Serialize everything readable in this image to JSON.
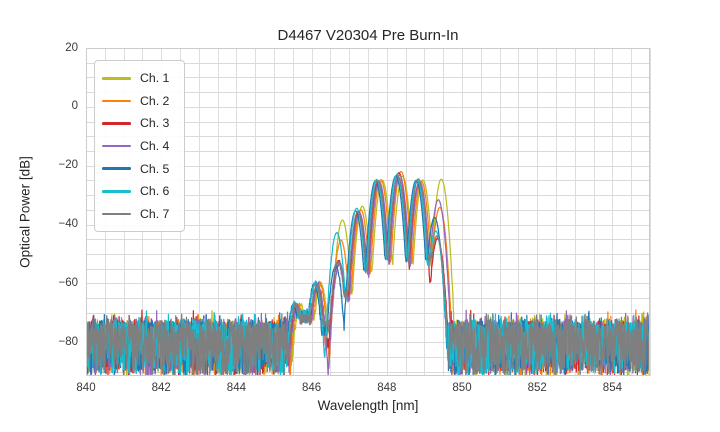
{
  "chart_data": {
    "type": "line",
    "title": "D4467 V20304 Pre Burn-In",
    "xlabel": "Wavelength [nm]",
    "ylabel": "Optical Power [dB]",
    "xlim": [
      840,
      855
    ],
    "ylim": [
      -91.5,
      20
    ],
    "x_tick_values": [
      840,
      842,
      844,
      846,
      848,
      850,
      852,
      854
    ],
    "x_tick_labels": [
      "840",
      "842",
      "844",
      "846",
      "848",
      "850",
      "852",
      "854"
    ],
    "y_tick_values": [
      20,
      0,
      -20,
      -40,
      -60,
      -80
    ],
    "y_tick_labels": [
      "20",
      "0",
      "−20",
      "−40",
      "−60",
      "−80"
    ],
    "grid": {
      "show": true,
      "x_step_nm": 0.5,
      "y_step_db": 5,
      "color": "#dadada",
      "border_color": "#cccccc"
    },
    "legend": {
      "position": "upper-left"
    },
    "noise_floor": {
      "top_db": -73.6,
      "typical_depth_db": 17.5,
      "spike_rate": 0.025,
      "regions_nm": [
        [
          840,
          845.4
        ],
        [
          849.7,
          855
        ]
      ]
    },
    "signal_band_nm": [
      845.4,
      849.7
    ],
    "mode_centers_nm": [
      845.6,
      846.15,
      846.72,
      847.25,
      847.78,
      848.32,
      848.86,
      849.35
    ],
    "lobe_width_coeff_db_per_nm2": 424,
    "series": [
      {
        "name": "Ch. 1",
        "color": "#bcbd22",
        "wavelength_offset_nm": 0.1,
        "mode_peaks_db": [
          -67.0,
          -60.2,
          -38.5,
          -33.8,
          -25.0,
          -23.6,
          -24.9,
          -24.6
        ],
        "valley_floors_db": [
          -71.0,
          -78,
          -63.0,
          -56.0,
          -52.0,
          -52.0,
          -50.0
        ]
      },
      {
        "name": "Ch. 2",
        "color": "#ff7f0e",
        "wavelength_offset_nm": 0.06,
        "mode_peaks_db": [
          -67.5,
          -60.0,
          -45.5,
          -35.0,
          -24.8,
          -22.0,
          -25.3,
          -34.2
        ],
        "valley_floors_db": [
          -71.5,
          -92,
          -64.0,
          -56.0,
          -51.5,
          -53.0,
          -57.0
        ]
      },
      {
        "name": "Ch. 3",
        "color": "#d62728",
        "wavelength_offset_nm": 0.0,
        "mode_peaks_db": [
          -68.0,
          -61.0,
          -52.5,
          -35.5,
          -25.3,
          -22.4,
          -26.0,
          -44.8
        ],
        "valley_floors_db": [
          -72.0,
          -80,
          -63.0,
          -55.5,
          -52.0,
          -55.5,
          -60.0
        ]
      },
      {
        "name": "Ch. 4",
        "color": "#9467bd",
        "wavelength_offset_nm": 0.02,
        "mode_peaks_db": [
          -68.0,
          -60.5,
          -53.5,
          -36.0,
          -25.5,
          -23.2,
          -25.6,
          -31.6
        ],
        "valley_floors_db": [
          -71.5,
          -97,
          -65.0,
          -57.0,
          -52.5,
          -53.0,
          -52.0
        ]
      },
      {
        "name": "Ch. 5",
        "color": "#1f77b4",
        "wavelength_offset_nm": -0.08,
        "mode_peaks_db": [
          -67.5,
          -60.5,
          -54.0,
          -35.4,
          -25.1,
          -23.5,
          -25.0,
          -37.6
        ],
        "valley_floors_db": [
          -71.0,
          -76,
          -80.0,
          -56.0,
          -52.0,
          -52.5,
          -52.0
        ]
      },
      {
        "name": "Ch. 6",
        "color": "#17becf",
        "wavelength_offset_nm": -0.05,
        "mode_peaks_db": [
          -67.0,
          -60.0,
          -42.8,
          -34.5,
          -24.7,
          -23.0,
          -24.8,
          -42.2
        ],
        "valley_floors_db": [
          -71.0,
          -88,
          -64.0,
          -55.0,
          -51.5,
          -52.0,
          -53.0
        ]
      },
      {
        "name": "Ch. 7",
        "color": "#7f7f7f",
        "wavelength_offset_nm": -0.02,
        "mode_peaks_db": [
          -67.5,
          -60.6,
          -52.8,
          -35.6,
          -25.0,
          -23.7,
          -24.5,
          -44.0
        ],
        "valley_floors_db": [
          -72.0,
          -74,
          -63.5,
          -56.0,
          -52.0,
          -52.0,
          -51.0
        ]
      }
    ]
  }
}
